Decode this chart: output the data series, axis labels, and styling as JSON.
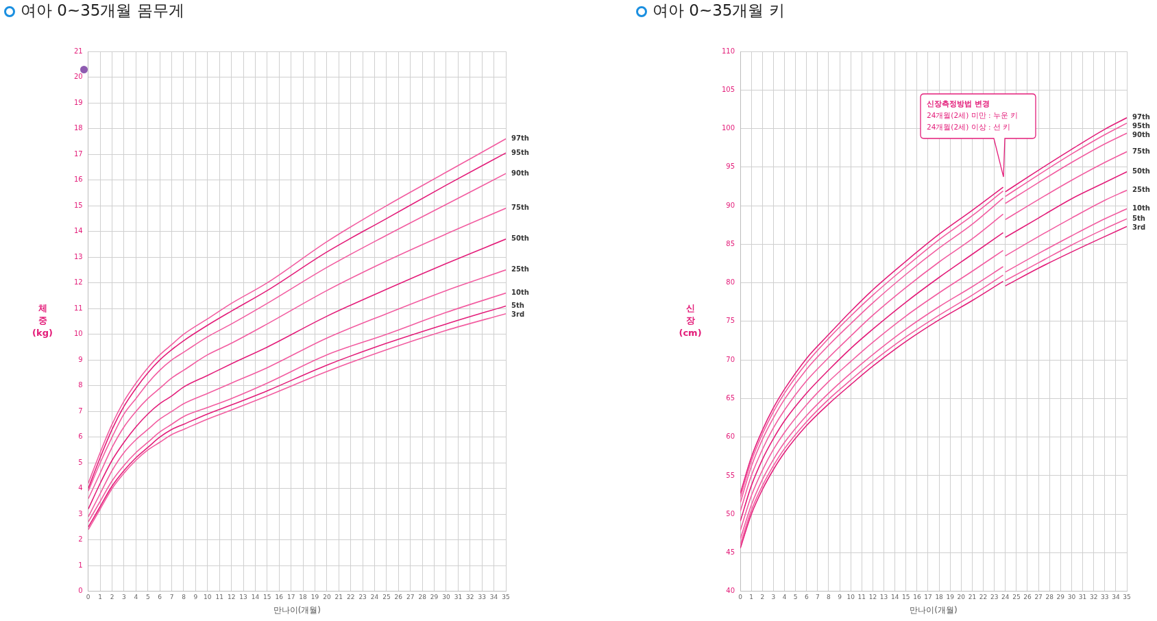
{
  "chart_data": [
    {
      "type": "line",
      "title": "여아 0~35개월 몸무게",
      "xlabel": "만나이(개월)",
      "ylabel": "체\n중\n(kg)",
      "xlim": [
        0,
        35
      ],
      "ylim": [
        0,
        21
      ],
      "xticks": [
        0,
        1,
        2,
        3,
        4,
        5,
        6,
        7,
        8,
        9,
        10,
        11,
        12,
        13,
        14,
        15,
        16,
        17,
        18,
        19,
        20,
        21,
        22,
        23,
        24,
        25,
        26,
        27,
        28,
        29,
        30,
        31,
        32,
        33,
        34,
        35
      ],
      "yticks": [
        0,
        1,
        2,
        3,
        4,
        5,
        6,
        7,
        8,
        9,
        10,
        11,
        12,
        13,
        14,
        15,
        16,
        17,
        18,
        19,
        20,
        21
      ],
      "grid": true,
      "x": [
        0,
        1,
        2,
        3,
        4,
        5,
        6,
        7,
        8,
        10,
        12,
        15,
        20,
        25,
        30,
        35
      ],
      "series": [
        {
          "name": "3rd",
          "color": "#f25ca0",
          "values": [
            2.4,
            3.2,
            4.0,
            4.6,
            5.1,
            5.5,
            5.8,
            6.1,
            6.3,
            6.7,
            7.05,
            7.6,
            8.55,
            9.4,
            10.15,
            10.8
          ]
        },
        {
          "name": "5th",
          "color": "#e31c79",
          "values": [
            2.5,
            3.3,
            4.1,
            4.7,
            5.2,
            5.6,
            6.0,
            6.3,
            6.5,
            6.9,
            7.25,
            7.8,
            8.8,
            9.65,
            10.4,
            11.1
          ]
        },
        {
          "name": "10th",
          "color": "#f25ca0",
          "values": [
            2.7,
            3.5,
            4.3,
            4.9,
            5.4,
            5.8,
            6.2,
            6.5,
            6.8,
            7.15,
            7.5,
            8.1,
            9.2,
            10.0,
            10.85,
            11.6
          ]
        },
        {
          "name": "25th",
          "color": "#f25ca0",
          "values": [
            2.9,
            3.8,
            4.7,
            5.4,
            5.9,
            6.3,
            6.7,
            7.0,
            7.3,
            7.7,
            8.1,
            8.7,
            9.85,
            10.8,
            11.7,
            12.5
          ]
        },
        {
          "name": "50th",
          "color": "#e31c79",
          "values": [
            3.2,
            4.2,
            5.1,
            5.8,
            6.4,
            6.9,
            7.3,
            7.6,
            7.95,
            8.4,
            8.85,
            9.5,
            10.7,
            11.75,
            12.75,
            13.7
          ]
        },
        {
          "name": "75th",
          "color": "#f25ca0",
          "values": [
            3.6,
            4.6,
            5.6,
            6.4,
            7.0,
            7.5,
            7.9,
            8.3,
            8.6,
            9.2,
            9.65,
            10.4,
            11.7,
            12.85,
            13.9,
            14.9
          ]
        },
        {
          "name": "90th",
          "color": "#f25ca0",
          "values": [
            3.9,
            5.0,
            6.0,
            6.9,
            7.5,
            8.1,
            8.6,
            9.0,
            9.3,
            9.9,
            10.4,
            11.2,
            12.6,
            13.85,
            15.05,
            16.25
          ]
        },
        {
          "name": "95th",
          "color": "#e31c79",
          "values": [
            4.0,
            5.2,
            6.3,
            7.2,
            7.9,
            8.5,
            9.0,
            9.4,
            9.75,
            10.35,
            10.9,
            11.7,
            13.2,
            14.5,
            15.8,
            17.05
          ]
        },
        {
          "name": "97th",
          "color": "#f25ca0",
          "values": [
            4.2,
            5.4,
            6.5,
            7.4,
            8.1,
            8.7,
            9.2,
            9.6,
            10.0,
            10.6,
            11.2,
            12.0,
            13.6,
            15.0,
            16.3,
            17.6
          ]
        }
      ]
    },
    {
      "type": "line",
      "title": "여아 0~35개월 키",
      "xlabel": "만나이(개월)",
      "ylabel": "신\n장\n(cm)",
      "xlim": [
        0,
        35
      ],
      "ylim": [
        40,
        110
      ],
      "xticks": [
        0,
        1,
        2,
        3,
        4,
        5,
        6,
        7,
        8,
        9,
        10,
        11,
        12,
        13,
        14,
        15,
        16,
        17,
        18,
        19,
        20,
        21,
        22,
        23,
        24,
        25,
        26,
        27,
        28,
        29,
        30,
        31,
        32,
        33,
        34,
        35
      ],
      "yticks": [
        40,
        45,
        50,
        55,
        60,
        65,
        70,
        75,
        80,
        85,
        90,
        95,
        100,
        105,
        110
      ],
      "grid": true,
      "annotations": [
        "신장측정방법 변경\n24개월(2세) 미만 : 누운 키\n24개월(2세) 이상 : 선 키"
      ],
      "x": [
        0,
        1,
        2,
        3,
        4,
        6,
        8,
        10,
        12,
        15,
        18,
        21,
        23.8,
        23.9,
        24,
        27,
        30,
        33,
        35
      ],
      "series": [
        {
          "name": "3rd",
          "color": "#e31c79",
          "values": [
            45.6,
            50.0,
            53.2,
            55.8,
            58.0,
            61.5,
            64.3,
            66.8,
            69.2,
            72.4,
            75.2,
            77.7,
            80.2,
            null,
            79.6,
            81.9,
            84.0,
            86.0,
            87.3
          ]
        },
        {
          "name": "5th",
          "color": "#f25ca0",
          "values": [
            46.1,
            50.5,
            53.7,
            56.3,
            58.5,
            62.0,
            64.9,
            67.4,
            69.8,
            73.0,
            75.8,
            78.4,
            81.0,
            null,
            80.3,
            82.6,
            84.9,
            87.0,
            88.3
          ]
        },
        {
          "name": "10th",
          "color": "#f25ca0",
          "values": [
            46.8,
            51.2,
            54.5,
            57.1,
            59.3,
            62.8,
            65.7,
            68.3,
            70.7,
            74.0,
            76.9,
            79.5,
            82.1,
            null,
            81.4,
            83.8,
            86.1,
            88.3,
            89.6
          ]
        },
        {
          "name": "25th",
          "color": "#f25ca0",
          "values": [
            47.9,
            52.4,
            55.7,
            58.4,
            60.6,
            64.2,
            67.2,
            69.8,
            72.3,
            75.7,
            78.7,
            81.5,
            84.2,
            null,
            83.5,
            86.0,
            88.4,
            90.7,
            92.0
          ]
        },
        {
          "name": "50th",
          "color": "#e31c79",
          "values": [
            49.1,
            53.7,
            57.1,
            59.8,
            62.1,
            65.7,
            68.7,
            71.5,
            74.0,
            77.5,
            80.7,
            83.7,
            86.5,
            null,
            85.9,
            88.4,
            90.9,
            93.0,
            94.4
          ]
        },
        {
          "name": "75th",
          "color": "#f25ca0",
          "values": [
            50.4,
            55.0,
            58.4,
            61.2,
            63.5,
            67.3,
            70.3,
            73.1,
            75.8,
            79.4,
            82.7,
            85.7,
            88.9,
            null,
            88.2,
            90.8,
            93.3,
            95.6,
            97.0
          ]
        },
        {
          "name": "90th",
          "color": "#f25ca0",
          "values": [
            51.5,
            56.2,
            59.7,
            62.5,
            64.9,
            68.8,
            71.9,
            74.7,
            77.4,
            81.1,
            84.5,
            87.6,
            91.0,
            null,
            90.3,
            93.0,
            95.6,
            98.0,
            99.4
          ]
        },
        {
          "name": "95th",
          "color": "#f25ca0",
          "values": [
            52.2,
            56.9,
            60.4,
            63.3,
            65.7,
            69.6,
            72.8,
            75.7,
            78.4,
            82.1,
            85.6,
            88.7,
            91.9,
            null,
            91.2,
            94.0,
            96.7,
            99.2,
            100.7
          ]
        },
        {
          "name": "97th",
          "color": "#e31c79",
          "values": [
            52.7,
            57.4,
            60.9,
            63.8,
            66.2,
            70.2,
            73.3,
            76.3,
            79.1,
            82.8,
            86.3,
            89.4,
            92.4,
            null,
            91.8,
            94.6,
            97.3,
            99.9,
            101.4
          ]
        }
      ]
    }
  ]
}
